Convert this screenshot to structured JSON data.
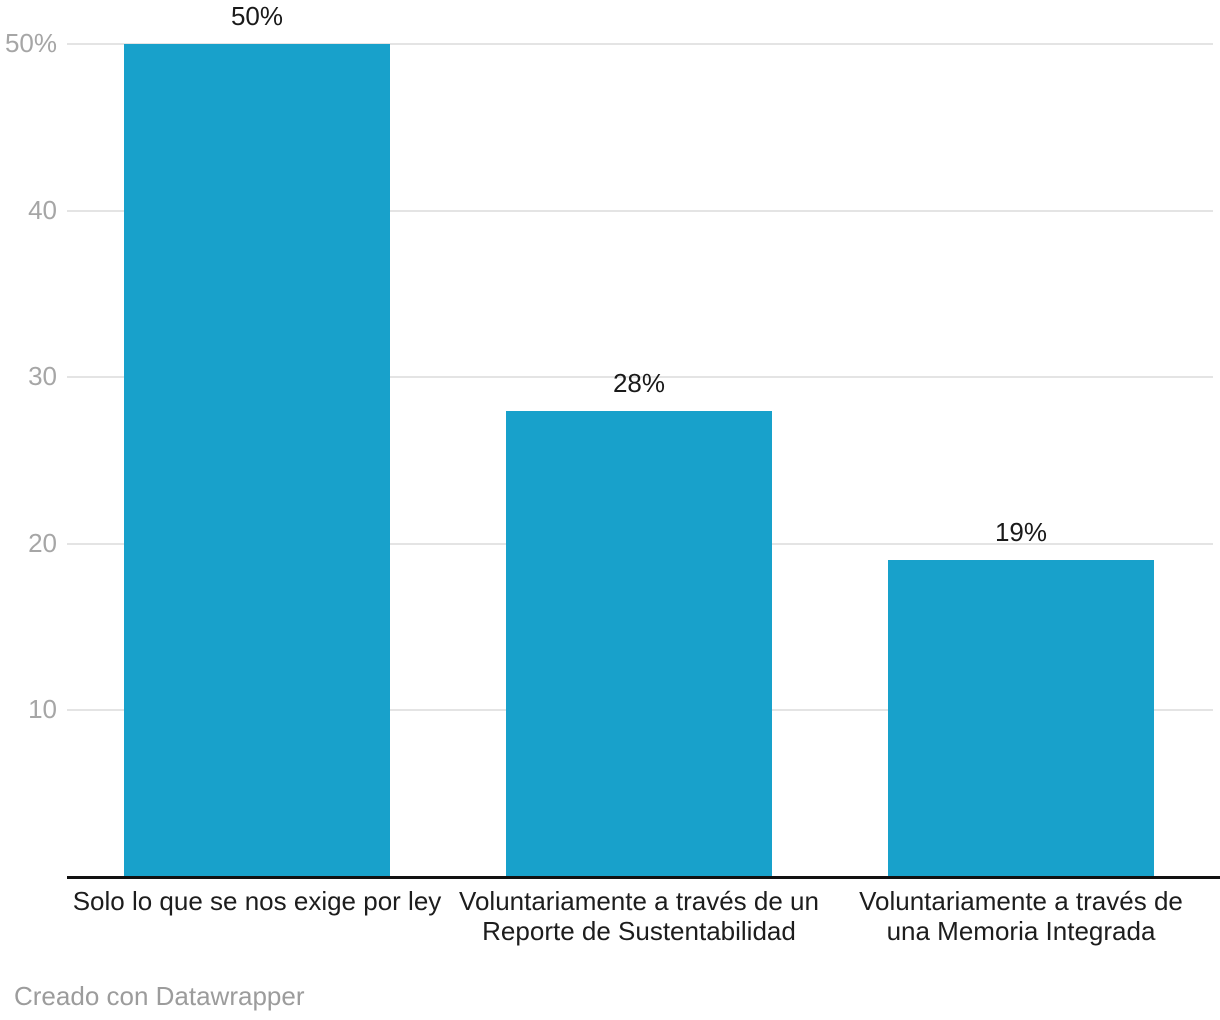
{
  "chart_data": {
    "type": "bar",
    "categories": [
      "Solo lo que se nos exige por ley",
      "Voluntariamente a través de un\nReporte de Sustentabilidad",
      "Voluntariamente a través de\nuna Memoria Integrada"
    ],
    "values": [
      50,
      28,
      19
    ],
    "value_labels": [
      "50%",
      "28%",
      "19%"
    ],
    "y_ticks": [
      {
        "value": 10,
        "label": "10"
      },
      {
        "value": 20,
        "label": "20"
      },
      {
        "value": 30,
        "label": "30"
      },
      {
        "value": 40,
        "label": "40"
      },
      {
        "value": 50,
        "label": "50%"
      }
    ],
    "ylim": [
      0,
      50
    ],
    "grid": true,
    "legend_position": "none",
    "colors": {
      "bar": "#18a1cb",
      "gridline": "#e4e4e4",
      "axis_line": "#111111",
      "tick_label": "#a6a6a6",
      "value_label": "#1a1a1a",
      "category_label": "#1d1d1d",
      "attribution": "#9c9c9c"
    }
  },
  "footer": {
    "attribution": "Creado con Datawrapper"
  }
}
